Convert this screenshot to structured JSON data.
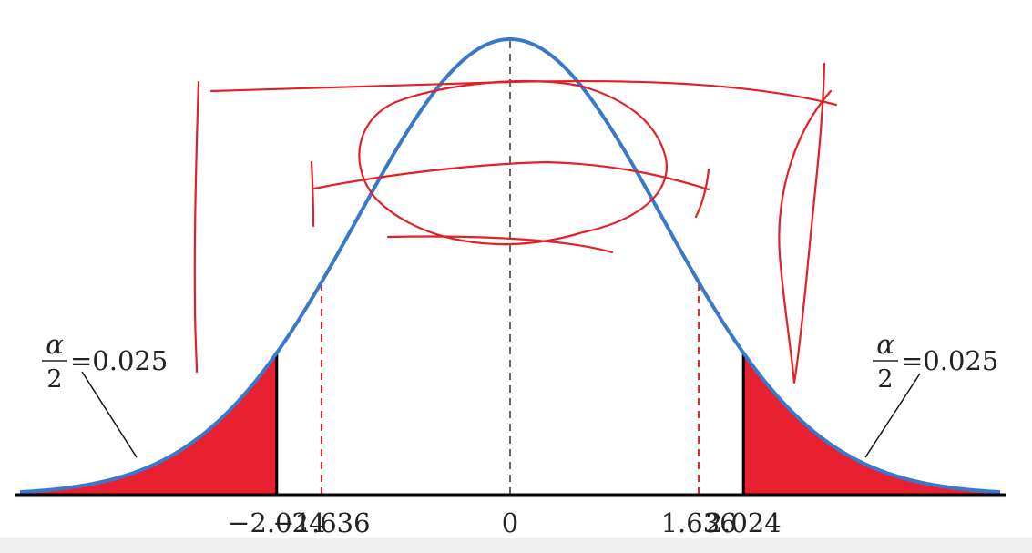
{
  "chart_data": {
    "type": "area",
    "title": "",
    "xlabel": "",
    "ylabel": "",
    "distribution": "normal",
    "mean": 0,
    "xlim": [
      -4.25,
      4.25
    ],
    "critical_values": [
      -2.024,
      2.024
    ],
    "test_values": [
      -1.636,
      1.636
    ],
    "center_value": 0,
    "tick_labels": [
      "−2.024",
      "−1.636",
      "0",
      "1.636",
      "2.024"
    ],
    "tick_values": [
      -2.024,
      -1.636,
      0,
      1.636,
      2.024
    ],
    "shaded_tails": [
      {
        "side": "left",
        "from": -4.25,
        "to": -2.024,
        "probability": 0.025
      },
      {
        "side": "right",
        "from": 2.024,
        "to": 4.25,
        "probability": 0.025
      }
    ],
    "annotations": [
      {
        "side": "left",
        "symbol": "α",
        "denominator": "2",
        "equals": "=0.025"
      },
      {
        "side": "right",
        "symbol": "α",
        "denominator": "2",
        "equals": "=0.025"
      }
    ],
    "grid": false,
    "colors": {
      "curve": "#3a78c9",
      "tail_fill": "#e8202f",
      "critical_line": "#000000",
      "test_line": "#d9252b",
      "center_line": "#666666",
      "axis": "#000000",
      "handwriting": "#e51f26"
    }
  }
}
